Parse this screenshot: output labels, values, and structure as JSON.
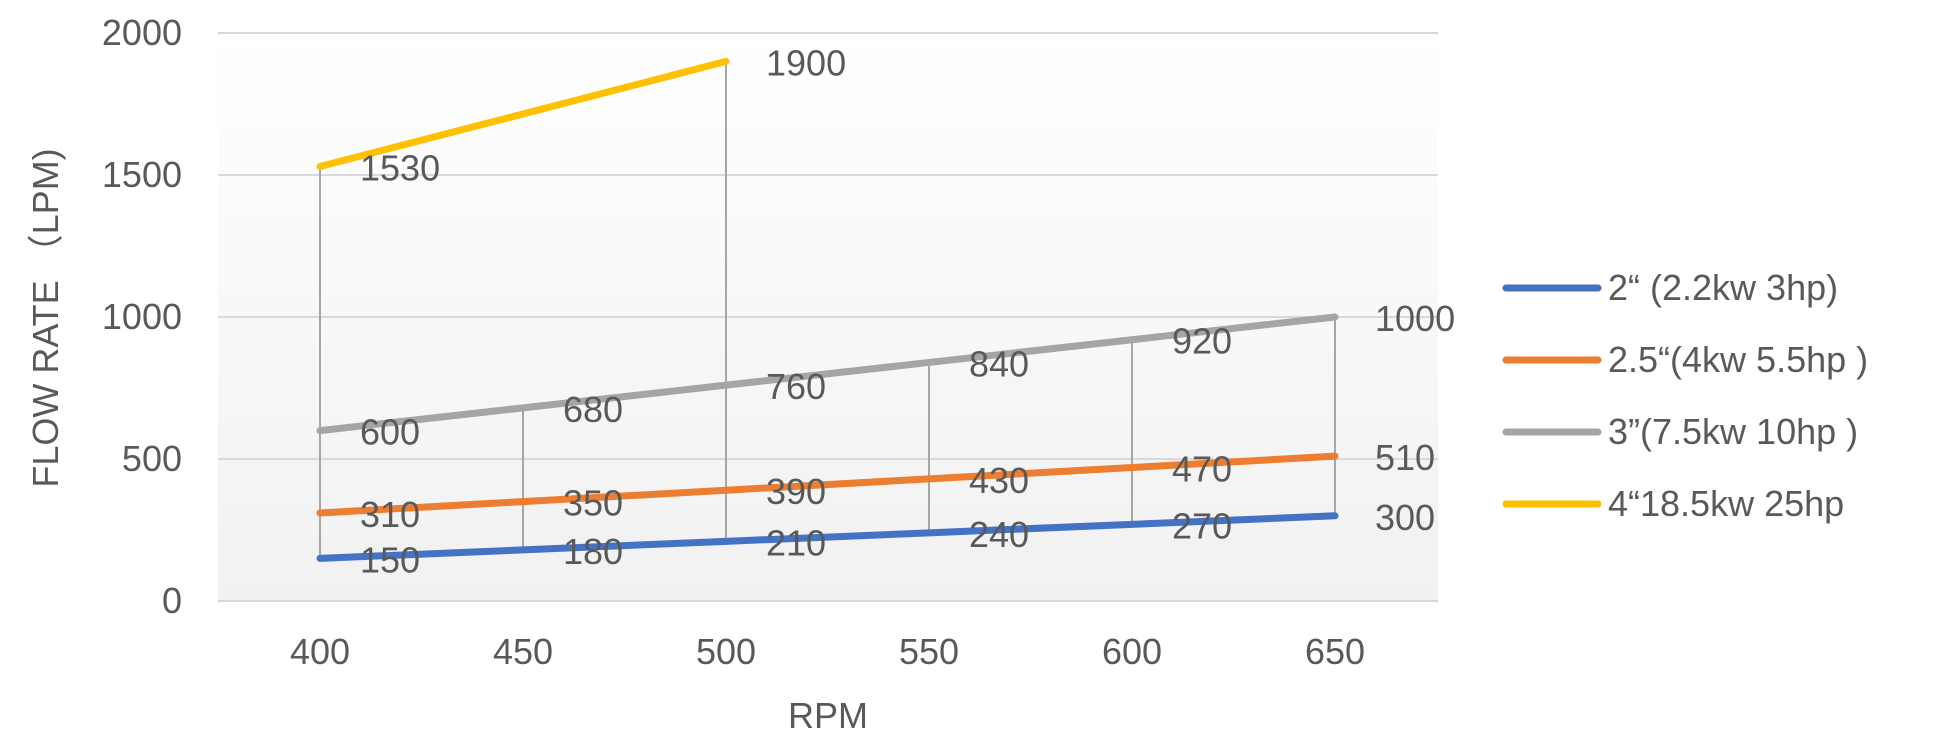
{
  "chart_data": {
    "type": "line",
    "title": "",
    "xlabel": "RPM",
    "ylabel": "FLOW RATE （LPM)",
    "x": [
      400,
      450,
      500,
      550,
      600,
      650
    ],
    "x_ticks": [
      "400",
      "450",
      "500",
      "550",
      "600",
      "650"
    ],
    "ylim": [
      0,
      2000
    ],
    "y_ticks": [
      "0",
      "500",
      "1000",
      "1500",
      "2000"
    ],
    "grid": true,
    "legend_position": "right",
    "drop_lines": true,
    "series": [
      {
        "name": "2“ (2.2kw 3hp)",
        "color": "#4472C4",
        "values": [
          150,
          180,
          210,
          240,
          270,
          300
        ],
        "labels": [
          "150",
          "180",
          "210",
          "240",
          "270",
          "300"
        ]
      },
      {
        "name": "2.5“(4kw 5.5hp )",
        "color": "#ED7D31",
        "values": [
          310,
          350,
          390,
          430,
          470,
          510
        ],
        "labels": [
          "310",
          "350",
          "390",
          "430",
          "470",
          "510"
        ]
      },
      {
        "name": "3”(7.5kw 10hp )",
        "color": "#A5A5A5",
        "values": [
          600,
          680,
          760,
          840,
          920,
          1000
        ],
        "labels": [
          "600",
          "680",
          "760",
          "840",
          "920",
          "1000"
        ]
      },
      {
        "name": "4“18.5kw 25hp",
        "color": "#FFC000",
        "values": [
          1530,
          null,
          1900,
          null,
          null,
          null
        ],
        "labels": [
          "1530",
          "",
          "1900",
          "",
          "",
          ""
        ]
      }
    ]
  }
}
